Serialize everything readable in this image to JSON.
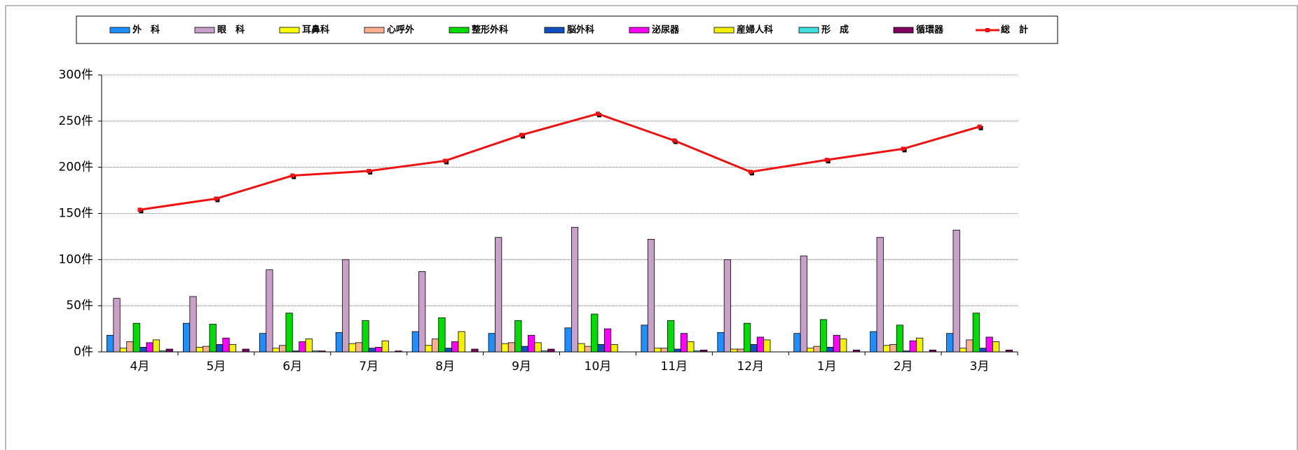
{
  "chart_data": {
    "type": "bar",
    "categories": [
      "4月",
      "5月",
      "6月",
      "7月",
      "8月",
      "9月",
      "10月",
      "11月",
      "12月",
      "1月",
      "2月",
      "3月"
    ],
    "series": [
      {
        "name": "外　科",
        "color": "#1e8fff",
        "values": [
          18,
          31,
          20,
          21,
          22,
          20,
          26,
          29,
          21,
          20,
          22,
          20
        ]
      },
      {
        "name": "眼　科",
        "color": "#c8a0c8",
        "values": [
          58,
          60,
          89,
          100,
          87,
          124,
          135,
          122,
          100,
          104,
          124,
          132
        ]
      },
      {
        "name": "耳鼻科",
        "color": "#ffff00",
        "values": [
          4,
          5,
          4,
          9,
          7,
          9,
          9,
          4,
          3,
          4,
          7,
          4
        ]
      },
      {
        "name": "心呼外",
        "color": "#ffb090",
        "values": [
          11,
          6,
          7,
          10,
          14,
          10,
          6,
          4,
          3,
          6,
          8,
          13
        ]
      },
      {
        "name": "整形外科",
        "color": "#00dd00",
        "values": [
          31,
          30,
          42,
          34,
          37,
          34,
          41,
          34,
          31,
          35,
          29,
          42
        ]
      },
      {
        "name": "脳外科",
        "color": "#1050c0",
        "values": [
          5,
          8,
          1,
          4,
          4,
          6,
          8,
          3,
          8,
          5,
          1,
          4
        ]
      },
      {
        "name": "泌尿器",
        "color": "#ff00ff",
        "values": [
          10,
          15,
          11,
          5,
          11,
          18,
          25,
          20,
          16,
          18,
          12,
          16
        ]
      },
      {
        "name": "産婦人科",
        "color": "#f0f000",
        "values": [
          13,
          8,
          14,
          12,
          22,
          10,
          8,
          11,
          13,
          14,
          15,
          11
        ]
      },
      {
        "name": "形　成",
        "color": "#40e0e0",
        "values": [
          1,
          0,
          1,
          0,
          0,
          1,
          0,
          1,
          0,
          0,
          0,
          0
        ]
      },
      {
        "name": "循環器",
        "color": "#800060",
        "values": [
          3,
          3,
          1,
          1,
          3,
          3,
          0,
          2,
          0,
          2,
          2,
          2
        ]
      },
      {
        "name": "総　計",
        "color": "#ee1111",
        "type": "line",
        "values": [
          154,
          166,
          191,
          196,
          207,
          235,
          258,
          229,
          195,
          208,
          220,
          244
        ]
      }
    ],
    "ylim": [
      0,
      300
    ],
    "yticks": [
      {
        "value": 0,
        "label": "0件"
      },
      {
        "value": 50,
        "label": "50件"
      },
      {
        "value": 100,
        "label": "100件"
      },
      {
        "value": 150,
        "label": "150件"
      },
      {
        "value": 200,
        "label": "200件"
      },
      {
        "value": 250,
        "label": "250件"
      },
      {
        "value": 300,
        "label": "300件"
      }
    ],
    "grid": true
  }
}
